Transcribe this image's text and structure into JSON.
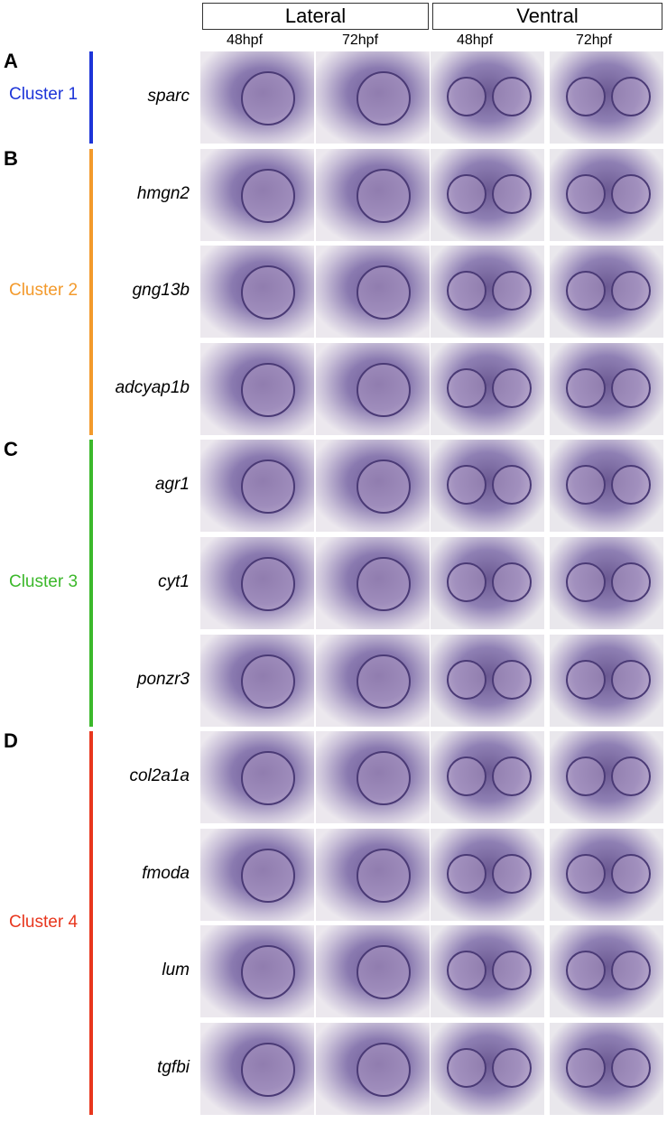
{
  "headers": [
    {
      "label": "Lateral",
      "columns": [
        "48hpf",
        "72hpf"
      ]
    },
    {
      "label": "Ventral",
      "columns": [
        "48hpf",
        "72hpf"
      ]
    }
  ],
  "clusters": [
    {
      "panel": "A",
      "label": "Cluster 1",
      "genes": [
        "sparc"
      ]
    },
    {
      "panel": "B",
      "label": "Cluster 2",
      "genes": [
        "hmgn2",
        "gng13b",
        "adcyap1b"
      ]
    },
    {
      "panel": "C",
      "label": "Cluster 3",
      "genes": [
        "agr1",
        "cyt1",
        "ponzr3"
      ]
    },
    {
      "panel": "D",
      "label": "Cluster 4",
      "genes": [
        "col2a1a",
        "fmoda",
        "lum",
        "tgfbi"
      ]
    }
  ]
}
